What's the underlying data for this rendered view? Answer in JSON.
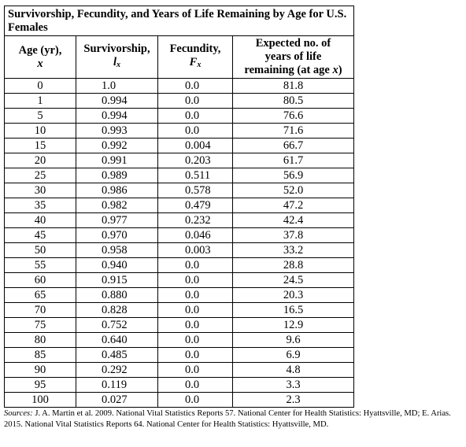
{
  "title": "Survivorship, Fecundity, and Years of Life Remaining by Age for U.S. Females",
  "columns": {
    "age": {
      "line1": "Age (yr),",
      "sym": "x"
    },
    "survivorship": {
      "line1": "Survivorship,",
      "sym": "l",
      "sub": "x"
    },
    "fecundity": {
      "line1": "Fecundity,",
      "sym": "F",
      "sub": "x"
    },
    "expected": {
      "line1": "Expected no. of",
      "line2": "years of life",
      "line3": "remaining (at age ",
      "sym": "x",
      "line3_end": ")"
    }
  },
  "rows": [
    {
      "age": "0",
      "surv": "1.0",
      "fec": "0.0",
      "exp": "81.8"
    },
    {
      "age": "1",
      "surv": "0.994",
      "fec": "0.0",
      "exp": "80.5"
    },
    {
      "age": "5",
      "surv": "0.994",
      "fec": "0.0",
      "exp": "76.6"
    },
    {
      "age": "10",
      "surv": "0.993",
      "fec": "0.0",
      "exp": "71.6"
    },
    {
      "age": "15",
      "surv": "0.992",
      "fec": "0.004",
      "exp": "66.7"
    },
    {
      "age": "20",
      "surv": "0.991",
      "fec": "0.203",
      "exp": "61.7"
    },
    {
      "age": "25",
      "surv": "0.989",
      "fec": "0.511",
      "exp": "56.9"
    },
    {
      "age": "30",
      "surv": "0.986",
      "fec": "0.578",
      "exp": "52.0"
    },
    {
      "age": "35",
      "surv": "0.982",
      "fec": "0.479",
      "exp": "47.2"
    },
    {
      "age": "40",
      "surv": "0.977",
      "fec": "0.232",
      "exp": "42.4"
    },
    {
      "age": "45",
      "surv": "0.970",
      "fec": "0.046",
      "exp": "37.8"
    },
    {
      "age": "50",
      "surv": "0.958",
      "fec": "0.003",
      "exp": "33.2"
    },
    {
      "age": "55",
      "surv": "0.940",
      "fec": "0.0",
      "exp": "28.8"
    },
    {
      "age": "60",
      "surv": "0.915",
      "fec": "0.0",
      "exp": "24.5"
    },
    {
      "age": "65",
      "surv": "0.880",
      "fec": "0.0",
      "exp": "20.3"
    },
    {
      "age": "70",
      "surv": "0.828",
      "fec": "0.0",
      "exp": "16.5"
    },
    {
      "age": "75",
      "surv": "0.752",
      "fec": "0.0",
      "exp": "12.9"
    },
    {
      "age": "80",
      "surv": "0.640",
      "fec": "0.0",
      "exp": "9.6"
    },
    {
      "age": "85",
      "surv": "0.485",
      "fec": "0.0",
      "exp": "6.9"
    },
    {
      "age": "90",
      "surv": "0.292",
      "fec": "0.0",
      "exp": "4.8"
    },
    {
      "age": "95",
      "surv": "0.119",
      "fec": "0.0",
      "exp": "3.3"
    },
    {
      "age": "100",
      "surv": "0.027",
      "fec": "0.0",
      "exp": "2.3"
    }
  ],
  "sources": {
    "lead": "Sources:",
    "text": " J. A. Martin et al. 2009. National Vital Statistics Reports 57. National Center for Health Statistics: Hyattsville, MD; E. Arias. 2015. National Vital Statistics Reports 64. National Center for Health Statistics: Hyattsville, MD."
  }
}
